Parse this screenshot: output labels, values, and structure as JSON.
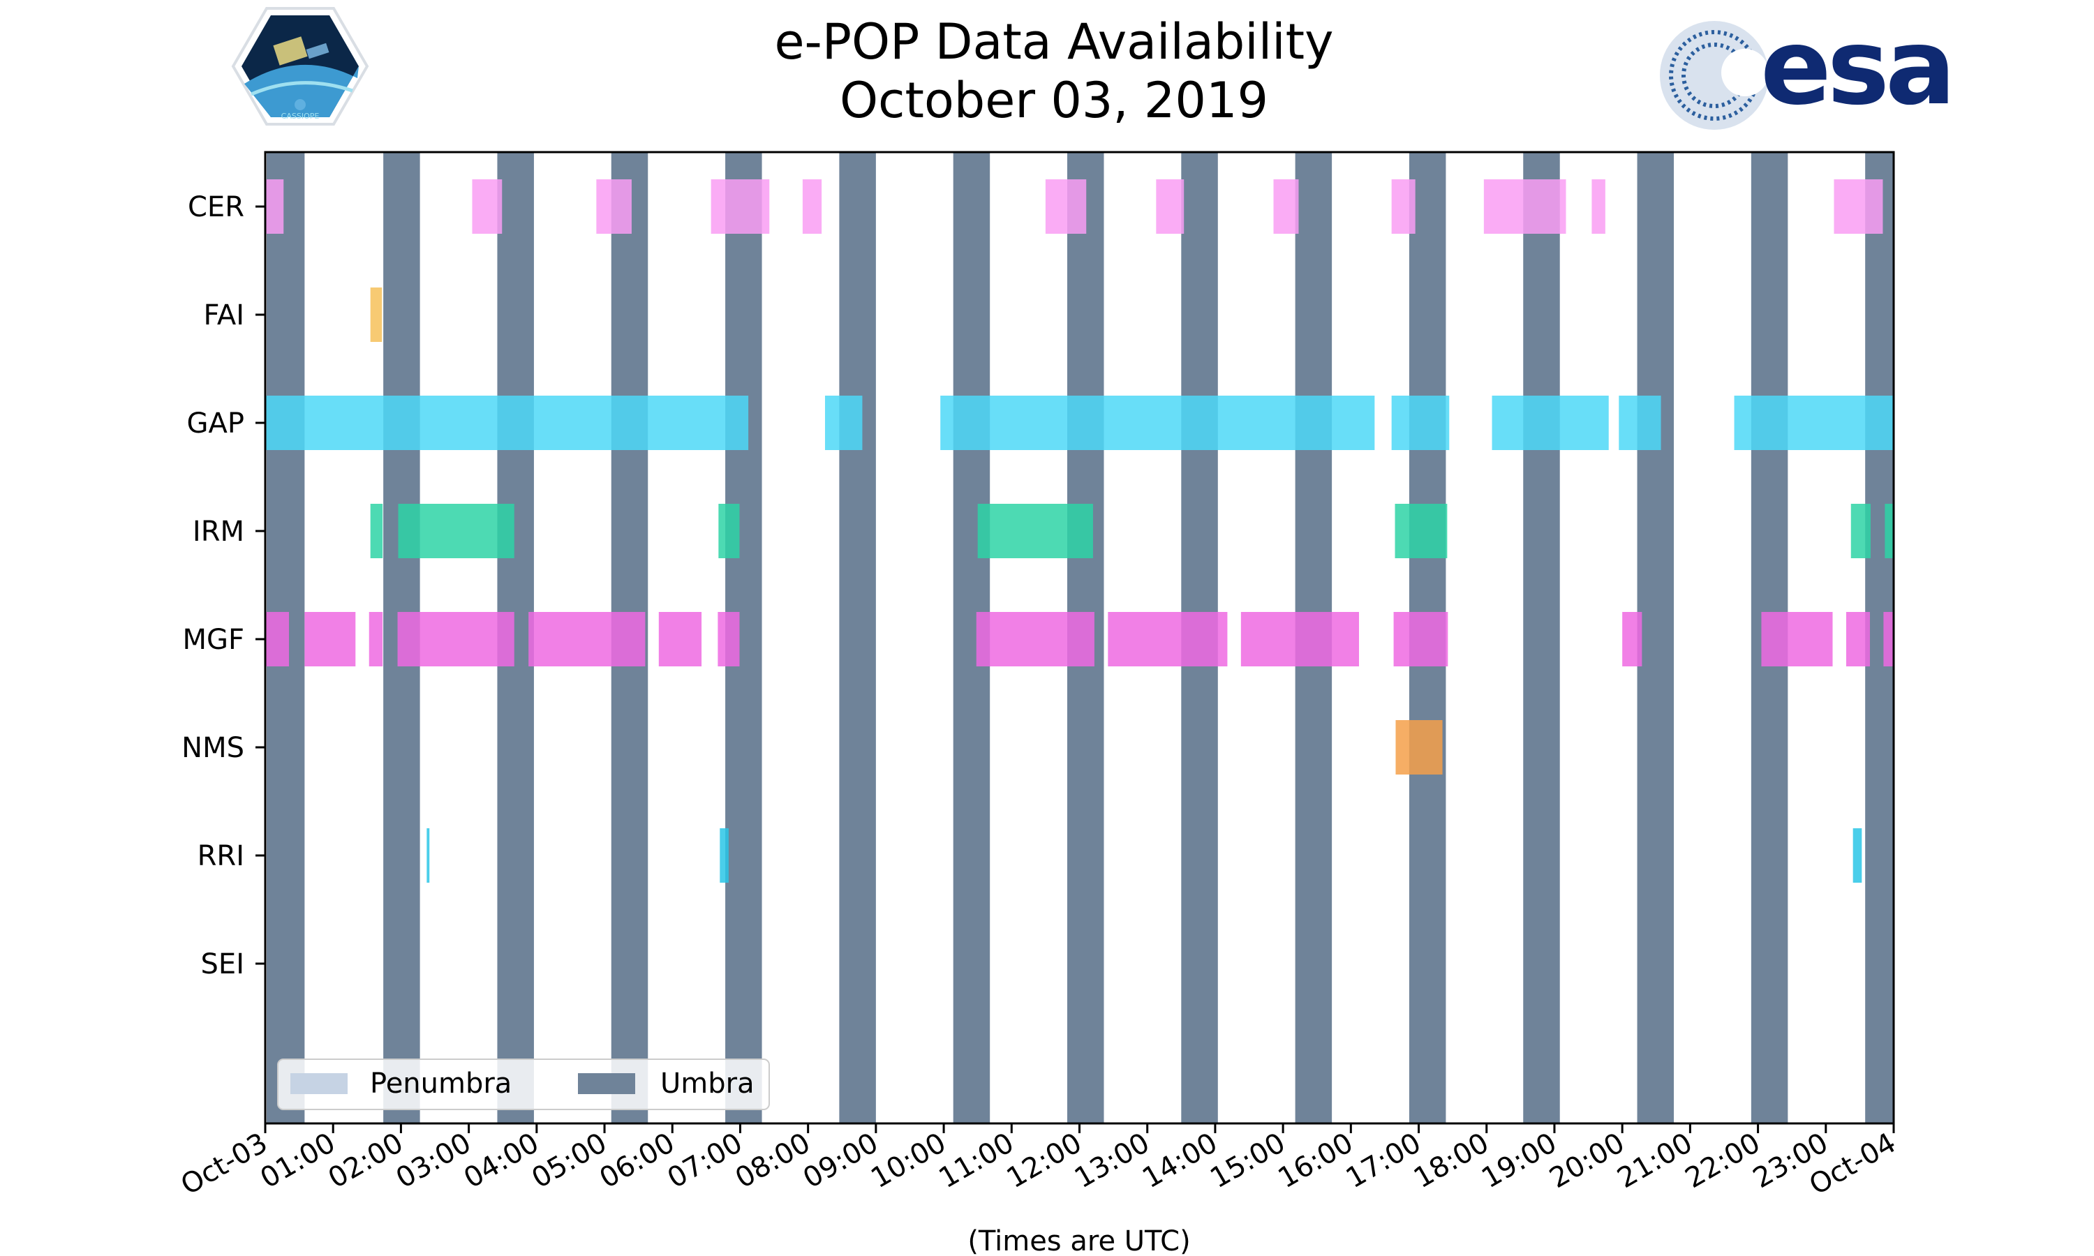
{
  "header": {
    "title_line1": "e-POP Data Availability",
    "title_line2": "October 03, 2019",
    "left_logo_text": "CASSIOPE",
    "right_logo_text": "esa"
  },
  "colors": {
    "umbra": "#6f8399",
    "penumbra": "#c6d3e4",
    "CER": "#f99ef3",
    "FAI": "#f6c15b",
    "GAP": "#4dd8f7",
    "IRM": "#2ed3a6",
    "MGF": "#ef6ae2",
    "NMS": "#f5a04a",
    "RRI": "#2ac5e6",
    "SEI": "#999999"
  },
  "chart_data": {
    "type": "timeline",
    "categories": [
      "CER",
      "FAI",
      "GAP",
      "IRM",
      "MGF",
      "NMS",
      "RRI",
      "SEI"
    ],
    "xlim_hours": [
      0,
      24
    ],
    "x_tick_labels": [
      "Oct-03",
      "01:00",
      "02:00",
      "03:00",
      "04:00",
      "05:00",
      "06:00",
      "07:00",
      "08:00",
      "09:00",
      "10:00",
      "11:00",
      "12:00",
      "13:00",
      "14:00",
      "15:00",
      "16:00",
      "17:00",
      "18:00",
      "19:00",
      "20:00",
      "21:00",
      "22:00",
      "23:00",
      "Oct-04"
    ],
    "xlabel": "(Times are UTC)",
    "legend": {
      "placement": "lower-left",
      "entries": [
        {
          "name": "Penumbra",
          "color_key": "penumbra"
        },
        {
          "name": "Umbra",
          "color_key": "umbra"
        }
      ]
    },
    "umbra_intervals_hours": [
      [
        0.02,
        0.58
      ],
      [
        1.74,
        2.28
      ],
      [
        3.42,
        3.96
      ],
      [
        5.1,
        5.64
      ],
      [
        6.78,
        7.32
      ],
      [
        8.46,
        9.0
      ],
      [
        10.14,
        10.68
      ],
      [
        11.82,
        12.36
      ],
      [
        13.5,
        14.04
      ],
      [
        15.18,
        15.72
      ],
      [
        16.86,
        17.4
      ],
      [
        18.54,
        19.08
      ],
      [
        20.22,
        20.76
      ],
      [
        21.9,
        22.44
      ],
      [
        23.58,
        24.0
      ]
    ],
    "penumbra_intervals_hours": [],
    "series": [
      {
        "name": "CER",
        "intervals_hours": [
          [
            0.0,
            0.27
          ],
          [
            3.05,
            3.49
          ],
          [
            4.88,
            5.4
          ],
          [
            6.57,
            7.43
          ],
          [
            7.92,
            8.2
          ],
          [
            11.5,
            12.1
          ],
          [
            13.13,
            13.54
          ],
          [
            14.86,
            15.23
          ],
          [
            16.6,
            16.95
          ],
          [
            17.96,
            19.17
          ],
          [
            19.55,
            19.75
          ],
          [
            23.12,
            23.84
          ]
        ]
      },
      {
        "name": "FAI",
        "intervals_hours": [
          [
            1.55,
            1.72
          ]
        ]
      },
      {
        "name": "GAP",
        "intervals_hours": [
          [
            0.0,
            7.12
          ],
          [
            8.25,
            8.8
          ],
          [
            9.95,
            16.35
          ],
          [
            16.6,
            17.45
          ],
          [
            18.08,
            19.8
          ],
          [
            19.95,
            20.57
          ],
          [
            21.65,
            24.0
          ]
        ]
      },
      {
        "name": "IRM",
        "intervals_hours": [
          [
            1.55,
            1.73
          ],
          [
            1.96,
            3.67
          ],
          [
            6.68,
            6.99
          ],
          [
            10.5,
            12.2
          ],
          [
            16.65,
            17.42
          ],
          [
            23.37,
            23.66
          ],
          [
            23.87,
            24.0
          ]
        ]
      },
      {
        "name": "MGF",
        "intervals_hours": [
          [
            0.0,
            0.35
          ],
          [
            0.58,
            1.33
          ],
          [
            1.53,
            1.73
          ],
          [
            1.95,
            3.67
          ],
          [
            3.88,
            5.6
          ],
          [
            5.8,
            6.43
          ],
          [
            6.67,
            6.99
          ],
          [
            10.48,
            12.22
          ],
          [
            12.42,
            14.18
          ],
          [
            14.38,
            16.12
          ],
          [
            16.63,
            17.43
          ],
          [
            20.0,
            20.29
          ],
          [
            22.05,
            23.1
          ],
          [
            23.3,
            23.65
          ],
          [
            23.85,
            24.0
          ]
        ]
      },
      {
        "name": "NMS",
        "intervals_hours": [
          [
            16.66,
            17.35
          ]
        ]
      },
      {
        "name": "RRI",
        "intervals_hours": [
          [
            2.38,
            2.42
          ],
          [
            6.7,
            6.83
          ],
          [
            23.4,
            23.53
          ]
        ]
      },
      {
        "name": "SEI",
        "intervals_hours": []
      }
    ]
  }
}
